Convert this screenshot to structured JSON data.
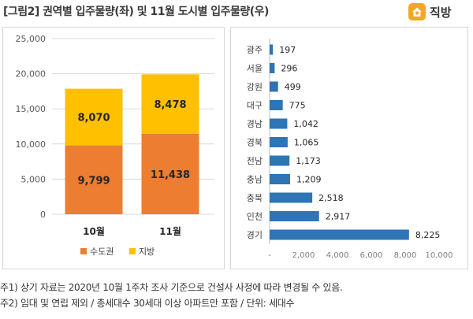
{
  "header": {
    "title": "[그림2] 권역별 입주물량(좌) 및 11월 도시별 입주물량(우)",
    "logo_text": "직방"
  },
  "chart_data": [
    {
      "type": "bar",
      "stacked": true,
      "categories": [
        "10월",
        "11월"
      ],
      "series": [
        {
          "name": "수도권",
          "values": [
            9799,
            11438
          ],
          "color": "#ed7d31"
        },
        {
          "name": "지방",
          "values": [
            8070,
            8478
          ],
          "color": "#ffc000"
        }
      ],
      "value_labels": {
        "수도권": [
          "9,799",
          "11,438"
        ],
        "지방": [
          "8,070",
          "8,478"
        ]
      },
      "ylim": [
        0,
        25000
      ],
      "yticks": [
        0,
        5000,
        10000,
        15000,
        20000,
        25000
      ],
      "ytick_labels": [
        "0",
        "5,000",
        "10,000",
        "15,000",
        "20,000",
        "25,000"
      ],
      "grid": true,
      "legend": "bottom"
    },
    {
      "type": "bar",
      "orientation": "horizontal",
      "categories": [
        "광주",
        "서울",
        "강원",
        "대구",
        "경남",
        "경북",
        "전남",
        "충남",
        "충북",
        "인천",
        "경기"
      ],
      "values": [
        197,
        296,
        499,
        775,
        1042,
        1065,
        1173,
        1209,
        2518,
        2917,
        8225
      ],
      "value_labels": [
        "197",
        "296",
        "499",
        "775",
        "1,042",
        "1,065",
        "1,173",
        "1,209",
        "2,518",
        "2,917",
        "8,225"
      ],
      "color": "#2e75b6",
      "xlim": [
        0,
        10000
      ],
      "xticks": [
        0,
        2000,
        4000,
        6000,
        8000,
        10000
      ],
      "xtick_labels": [
        "-",
        "2,000",
        "4,000",
        "6,000",
        "8,000",
        "10,000"
      ],
      "grid": false
    }
  ],
  "notes": {
    "line1": "주1) 상기 자료는 2020년 10월 1주차 조사 기준으로 건설사 사정에 따라 변경될 수 있음.",
    "line2": "주2) 임대 및 연립 제외 / 총세대수 30세대 이상 아파트만 포함 / 단위: 세대수"
  }
}
